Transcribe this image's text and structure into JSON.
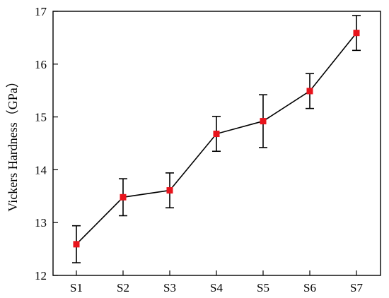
{
  "chart_data": {
    "type": "line",
    "title": "",
    "xlabel": "",
    "ylabel": "Vickers Hardness（GPa）",
    "categories": [
      "S1",
      "S2",
      "S3",
      "S4",
      "S5",
      "S6",
      "S7"
    ],
    "series": [
      {
        "values": [
          12.59,
          13.48,
          13.61,
          14.68,
          14.92,
          15.49,
          16.59
        ],
        "error": [
          0.35,
          0.35,
          0.33,
          0.33,
          0.5,
          0.33,
          0.33
        ],
        "line_color": "#000000",
        "marker_color": "#e8141c",
        "marker": "square"
      }
    ],
    "ylim": [
      12,
      17
    ],
    "yticks": [
      "12",
      "13",
      "14",
      "15",
      "16",
      "17"
    ],
    "grid": false,
    "legend": "none"
  }
}
